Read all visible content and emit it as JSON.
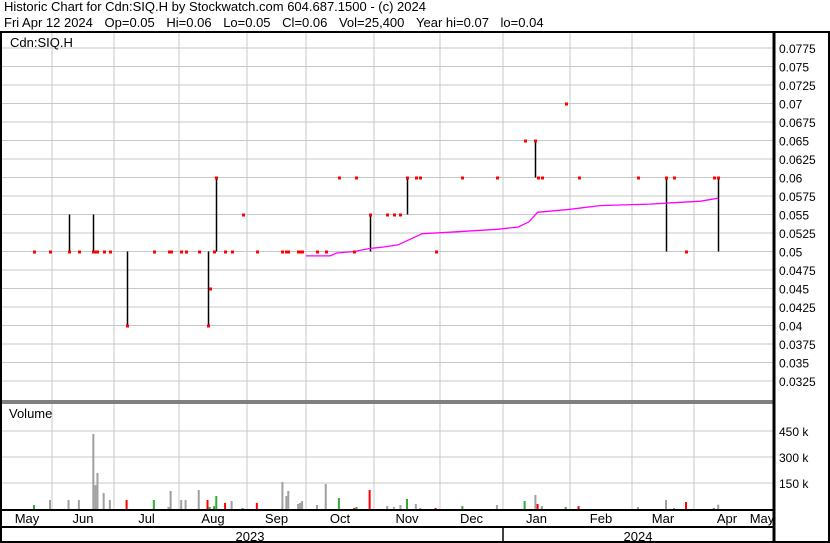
{
  "header": {
    "title": "Historic Chart for Cdn:SIQ.H by Stockwatch.com 604.687.1500 - (c) 2024",
    "quote": [
      "Fri Apr 12 2024",
      "Op=0.05",
      "Hi=0.06",
      "Lo=0.05",
      "Cl=0.06",
      "Vol=25,400",
      "Year hi=0.07",
      "lo=0.04"
    ]
  },
  "colors": {
    "close_tick": "#ff0000",
    "range_line": "#000000",
    "moving_average": "#ff00ff",
    "vol_up": "#33aa33",
    "vol_down": "#ff0000",
    "vol_flat": "#a0a0a0",
    "grid": "#c8c8c8"
  },
  "chart_data": [
    {
      "type": "line",
      "label": "Cdn:SIQ.H",
      "ylim": [
        0.0299,
        0.0795
      ],
      "y_ticks": [
        "0.0775",
        "0.075",
        "0.0725",
        "0.07",
        "0.0675",
        "0.065",
        "0.0625",
        "0.06",
        "0.0575",
        "0.055",
        "0.0525",
        "0.05",
        "0.0475",
        "0.045",
        "0.0425",
        "0.04",
        "0.0375",
        "0.035",
        "0.0325"
      ],
      "x_ticks": [
        "May",
        "Jun",
        "Jul",
        "Aug",
        "Sep",
        "Oct",
        "Nov",
        "Dec",
        "Jan",
        "Feb",
        "Mar",
        "Apr",
        "May"
      ],
      "x_years": [
        "2023",
        "2024"
      ],
      "grid": true,
      "series": [
        {
          "kind": "hi-lo-close",
          "points": [
            {
              "d": "2023-05-23",
              "hi": 0.05,
              "lo": 0.05,
              "cl": 0.05
            },
            {
              "d": "2023-05-31",
              "hi": 0.05,
              "lo": 0.05,
              "cl": 0.05
            },
            {
              "d": "2023-06-09",
              "hi": 0.055,
              "lo": 0.05,
              "cl": 0.05
            },
            {
              "d": "2023-06-14",
              "hi": 0.05,
              "lo": 0.05,
              "cl": 0.05
            },
            {
              "d": "2023-06-21",
              "hi": 0.055,
              "lo": 0.05,
              "cl": 0.05
            },
            {
              "d": "2023-06-22",
              "hi": 0.05,
              "lo": 0.05,
              "cl": 0.05
            },
            {
              "d": "2023-06-23",
              "hi": 0.05,
              "lo": 0.05,
              "cl": 0.05
            },
            {
              "d": "2023-06-26",
              "hi": 0.05,
              "lo": 0.05,
              "cl": 0.05
            },
            {
              "d": "2023-06-29",
              "hi": 0.05,
              "lo": 0.05,
              "cl": 0.05
            },
            {
              "d": "2023-07-07",
              "hi": 0.05,
              "lo": 0.04,
              "cl": 0.04
            },
            {
              "d": "2023-07-20",
              "hi": 0.05,
              "lo": 0.05,
              "cl": 0.05
            },
            {
              "d": "2023-07-27",
              "hi": 0.05,
              "lo": 0.05,
              "cl": 0.05
            },
            {
              "d": "2023-07-28",
              "hi": 0.05,
              "lo": 0.05,
              "cl": 0.05
            },
            {
              "d": "2023-08-02",
              "hi": 0.05,
              "lo": 0.05,
              "cl": 0.05
            },
            {
              "d": "2023-08-04",
              "hi": 0.05,
              "lo": 0.05,
              "cl": 0.05
            },
            {
              "d": "2023-08-10",
              "hi": 0.05,
              "lo": 0.05,
              "cl": 0.05
            },
            {
              "d": "2023-08-14",
              "hi": 0.05,
              "lo": 0.04,
              "cl": 0.04
            },
            {
              "d": "2023-08-15",
              "hi": 0.045,
              "lo": 0.045,
              "cl": 0.045
            },
            {
              "d": "2023-08-17",
              "hi": 0.05,
              "lo": 0.05,
              "cl": 0.05
            },
            {
              "d": "2023-08-18",
              "hi": 0.06,
              "lo": 0.05,
              "cl": 0.06
            },
            {
              "d": "2023-08-22",
              "hi": 0.05,
              "lo": 0.05,
              "cl": 0.05
            },
            {
              "d": "2023-08-25",
              "hi": 0.05,
              "lo": 0.05,
              "cl": 0.05
            },
            {
              "d": "2023-08-30",
              "hi": 0.055,
              "lo": 0.055,
              "cl": 0.055
            },
            {
              "d": "2023-09-06",
              "hi": 0.05,
              "lo": 0.05,
              "cl": 0.05
            },
            {
              "d": "2023-09-19",
              "hi": 0.05,
              "lo": 0.05,
              "cl": 0.05
            },
            {
              "d": "2023-09-21",
              "hi": 0.05,
              "lo": 0.05,
              "cl": 0.05
            },
            {
              "d": "2023-09-22",
              "hi": 0.05,
              "lo": 0.05,
              "cl": 0.05
            },
            {
              "d": "2023-09-27",
              "hi": 0.05,
              "lo": 0.05,
              "cl": 0.05
            },
            {
              "d": "2023-09-28",
              "hi": 0.05,
              "lo": 0.05,
              "cl": 0.05
            },
            {
              "d": "2023-09-29",
              "hi": 0.05,
              "lo": 0.05,
              "cl": 0.05
            },
            {
              "d": "2023-10-06",
              "hi": 0.05,
              "lo": 0.05,
              "cl": 0.05
            },
            {
              "d": "2023-10-10",
              "hi": 0.05,
              "lo": 0.05,
              "cl": 0.05
            },
            {
              "d": "2023-10-16",
              "hi": 0.06,
              "lo": 0.06,
              "cl": 0.06
            },
            {
              "d": "2023-10-23",
              "hi": 0.05,
              "lo": 0.05,
              "cl": 0.05
            },
            {
              "d": "2023-10-24",
              "hi": 0.06,
              "lo": 0.06,
              "cl": 0.06
            },
            {
              "d": "2023-10-30",
              "hi": 0.055,
              "lo": 0.05,
              "cl": 0.055
            },
            {
              "d": "2023-11-07",
              "hi": 0.055,
              "lo": 0.055,
              "cl": 0.055
            },
            {
              "d": "2023-11-10",
              "hi": 0.055,
              "lo": 0.055,
              "cl": 0.055
            },
            {
              "d": "2023-11-13",
              "hi": 0.055,
              "lo": 0.055,
              "cl": 0.055
            },
            {
              "d": "2023-11-16",
              "hi": 0.06,
              "lo": 0.055,
              "cl": 0.06
            },
            {
              "d": "2023-11-20",
              "hi": 0.06,
              "lo": 0.06,
              "cl": 0.06
            },
            {
              "d": "2023-11-22",
              "hi": 0.06,
              "lo": 0.06,
              "cl": 0.06
            },
            {
              "d": "2023-11-29",
              "hi": 0.05,
              "lo": 0.05,
              "cl": 0.05
            },
            {
              "d": "2023-12-12",
              "hi": 0.06,
              "lo": 0.06,
              "cl": 0.06
            },
            {
              "d": "2023-12-29",
              "hi": 0.06,
              "lo": 0.06,
              "cl": 0.06
            },
            {
              "d": "2024-01-11",
              "hi": 0.065,
              "lo": 0.065,
              "cl": 0.065
            },
            {
              "d": "2024-01-16",
              "hi": 0.065,
              "lo": 0.06,
              "cl": 0.065
            },
            {
              "d": "2024-01-17",
              "hi": 0.06,
              "lo": 0.06,
              "cl": 0.06
            },
            {
              "d": "2024-01-19",
              "hi": 0.06,
              "lo": 0.06,
              "cl": 0.06
            },
            {
              "d": "2024-01-30",
              "hi": 0.07,
              "lo": 0.07,
              "cl": 0.07
            },
            {
              "d": "2024-02-05",
              "hi": 0.06,
              "lo": 0.06,
              "cl": 0.06
            },
            {
              "d": "2024-03-04",
              "hi": 0.06,
              "lo": 0.06,
              "cl": 0.06
            },
            {
              "d": "2024-03-18",
              "hi": 0.06,
              "lo": 0.05,
              "cl": 0.06
            },
            {
              "d": "2024-03-22",
              "hi": 0.06,
              "lo": 0.06,
              "cl": 0.06
            },
            {
              "d": "2024-03-28",
              "hi": 0.05,
              "lo": 0.05,
              "cl": 0.05
            },
            {
              "d": "2024-04-10",
              "hi": 0.06,
              "lo": 0.06,
              "cl": 0.06
            },
            {
              "d": "2024-04-12",
              "hi": 0.06,
              "lo": 0.05,
              "cl": 0.06
            }
          ]
        },
        {
          "kind": "moving-average",
          "points": [
            [
              "2023-10-01",
              0.0494
            ],
            [
              "2023-10-12",
              0.0494
            ],
            [
              "2023-10-15",
              0.0498
            ],
            [
              "2023-10-23",
              0.05
            ],
            [
              "2023-10-30",
              0.0504
            ],
            [
              "2023-11-05",
              0.0506
            ],
            [
              "2023-11-12",
              0.0509
            ],
            [
              "2023-11-17",
              0.0516
            ],
            [
              "2023-11-23",
              0.0524
            ],
            [
              "2023-12-05",
              0.0526
            ],
            [
              "2023-12-29",
              0.053
            ],
            [
              "2024-01-08",
              0.0533
            ],
            [
              "2024-01-13",
              0.054
            ],
            [
              "2024-01-17",
              0.0553
            ],
            [
              "2024-02-01",
              0.0557
            ],
            [
              "2024-02-15",
              0.0562
            ],
            [
              "2024-03-10",
              0.0564
            ],
            [
              "2024-03-22",
              0.0566
            ],
            [
              "2024-04-04",
              0.0568
            ],
            [
              "2024-04-12",
              0.0572
            ]
          ]
        }
      ]
    },
    {
      "type": "bar",
      "label": "Volume",
      "y_ticks": [
        "450 k",
        "300 k",
        "150 k"
      ],
      "ylim": [
        0,
        540000
      ],
      "bars": [
        [
          "2023-05-23",
          23000,
          "up"
        ],
        [
          "2023-05-31",
          52000,
          "flat"
        ],
        [
          "2023-06-09",
          52000,
          "flat"
        ],
        [
          "2023-06-14",
          52000,
          "flat"
        ],
        [
          "2023-06-21",
          433000,
          "flat"
        ],
        [
          "2023-06-22",
          138000,
          "flat"
        ],
        [
          "2023-06-23",
          208000,
          "flat"
        ],
        [
          "2023-06-26",
          92000,
          "flat"
        ],
        [
          "2023-06-29",
          52000,
          "flat"
        ],
        [
          "2023-07-07",
          52000,
          "down"
        ],
        [
          "2023-07-20",
          52000,
          "up"
        ],
        [
          "2023-07-27",
          12000,
          "flat"
        ],
        [
          "2023-07-28",
          104000,
          "flat"
        ],
        [
          "2023-08-02",
          52000,
          "flat"
        ],
        [
          "2023-08-04",
          52000,
          "flat"
        ],
        [
          "2023-08-10",
          110000,
          "flat"
        ],
        [
          "2023-08-14",
          52000,
          "down"
        ],
        [
          "2023-08-15",
          12000,
          "up"
        ],
        [
          "2023-08-17",
          17000,
          "up"
        ],
        [
          "2023-08-18",
          75000,
          "up"
        ],
        [
          "2023-08-22",
          35000,
          "down"
        ],
        [
          "2023-08-25",
          46000,
          "flat"
        ],
        [
          "2023-08-30",
          6000,
          "up"
        ],
        [
          "2023-09-06",
          35000,
          "down"
        ],
        [
          "2023-09-19",
          156000,
          "flat"
        ],
        [
          "2023-09-21",
          75000,
          "flat"
        ],
        [
          "2023-09-22",
          104000,
          "flat"
        ],
        [
          "2023-09-27",
          29000,
          "flat"
        ],
        [
          "2023-09-28",
          35000,
          "flat"
        ],
        [
          "2023-09-29",
          46000,
          "flat"
        ],
        [
          "2023-10-06",
          23000,
          "flat"
        ],
        [
          "2023-10-10",
          144000,
          "flat"
        ],
        [
          "2023-10-16",
          63000,
          "up"
        ],
        [
          "2023-10-23",
          6000,
          "down"
        ],
        [
          "2023-10-24",
          12000,
          "up"
        ],
        [
          "2023-10-30",
          110000,
          "down"
        ],
        [
          "2023-11-07",
          17000,
          "flat"
        ],
        [
          "2023-11-10",
          12000,
          "flat"
        ],
        [
          "2023-11-13",
          23000,
          "flat"
        ],
        [
          "2023-11-16",
          58000,
          "up"
        ],
        [
          "2023-11-20",
          29000,
          "flat"
        ],
        [
          "2023-11-22",
          6000,
          "flat"
        ],
        [
          "2023-11-29",
          6000,
          "down"
        ],
        [
          "2023-12-12",
          17000,
          "up"
        ],
        [
          "2023-12-29",
          23000,
          "flat"
        ],
        [
          "2024-01-11",
          46000,
          "up"
        ],
        [
          "2024-01-16",
          81000,
          "flat"
        ],
        [
          "2024-01-17",
          29000,
          "down"
        ],
        [
          "2024-01-19",
          17000,
          "flat"
        ],
        [
          "2024-01-30",
          12000,
          "up"
        ],
        [
          "2024-02-05",
          17000,
          "down"
        ],
        [
          "2024-03-04",
          12000,
          "flat"
        ],
        [
          "2024-03-18",
          52000,
          "flat"
        ],
        [
          "2024-03-22",
          6000,
          "flat"
        ],
        [
          "2024-03-28",
          40000,
          "down"
        ],
        [
          "2024-04-10",
          6000,
          "up"
        ],
        [
          "2024-04-12",
          25400,
          "flat"
        ]
      ]
    }
  ]
}
